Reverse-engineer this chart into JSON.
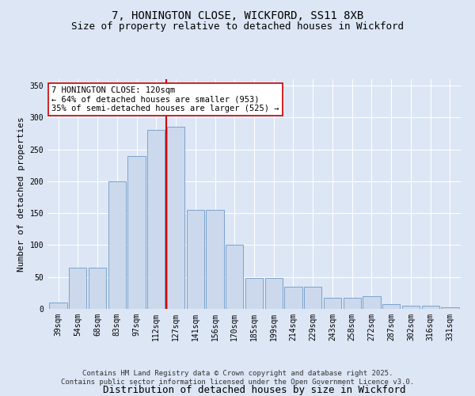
{
  "title_line1": "7, HONINGTON CLOSE, WICKFORD, SS11 8XB",
  "title_line2": "Size of property relative to detached houses in Wickford",
  "xlabel": "Distribution of detached houses by size in Wickford",
  "ylabel": "Number of detached properties",
  "categories": [
    "39sqm",
    "54sqm",
    "68sqm",
    "83sqm",
    "97sqm",
    "112sqm",
    "127sqm",
    "141sqm",
    "156sqm",
    "170sqm",
    "185sqm",
    "199sqm",
    "214sqm",
    "229sqm",
    "243sqm",
    "258sqm",
    "272sqm",
    "287sqm",
    "302sqm",
    "316sqm",
    "331sqm"
  ],
  "values": [
    10,
    65,
    65,
    200,
    240,
    280,
    285,
    155,
    155,
    100,
    48,
    48,
    35,
    35,
    18,
    18,
    20,
    8,
    5,
    5,
    3
  ],
  "bar_color": "#ccd9ec",
  "bar_edge_color": "#7ba3cc",
  "vline_x_index": 6,
  "vline_color": "#cc0000",
  "annotation_text": "7 HONINGTON CLOSE: 120sqm\n← 64% of detached houses are smaller (953)\n35% of semi-detached houses are larger (525) →",
  "annotation_box_facecolor": "white",
  "annotation_box_edgecolor": "#cc0000",
  "ylim": [
    0,
    360
  ],
  "yticks": [
    0,
    50,
    100,
    150,
    200,
    250,
    300,
    350
  ],
  "background_color": "#dce6f5",
  "plot_background": "#dce6f5",
  "grid_color": "white",
  "footer_line1": "Contains HM Land Registry data © Crown copyright and database right 2025.",
  "footer_line2": "Contains public sector information licensed under the Open Government Licence v3.0.",
  "title_fontsize": 10,
  "subtitle_fontsize": 9,
  "ylabel_fontsize": 8,
  "xlabel_fontsize": 9,
  "tick_fontsize": 7,
  "annotation_fontsize": 7.5,
  "footer_fontsize": 6.5
}
